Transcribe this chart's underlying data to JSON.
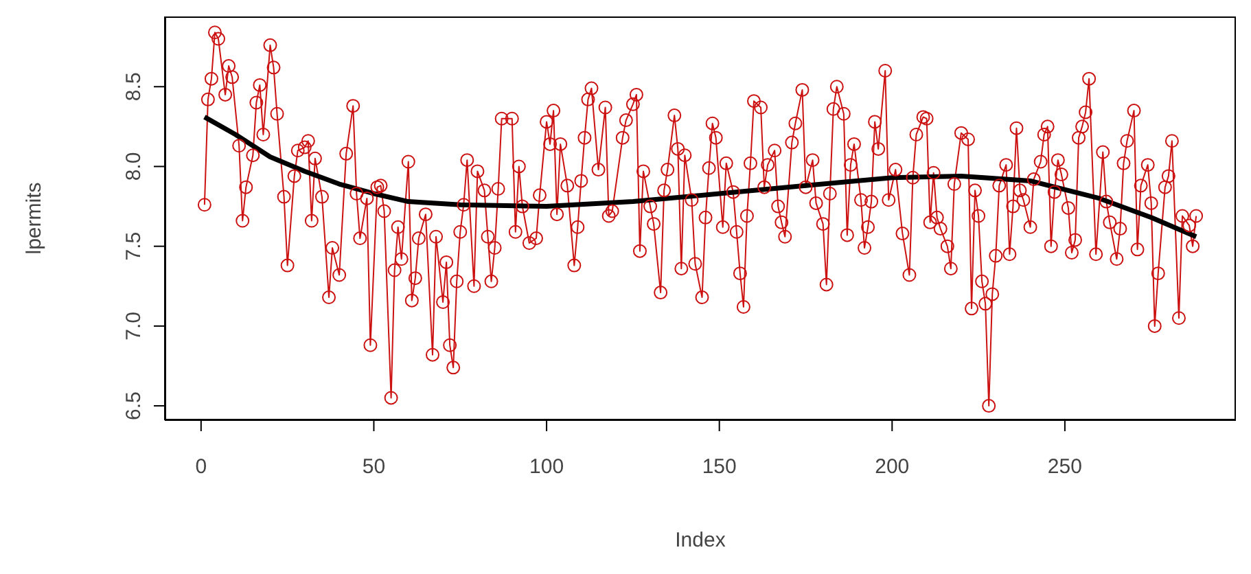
{
  "chart_data": {
    "type": "line",
    "xlabel": "Index",
    "ylabel": "lpermits",
    "xlim": [
      -10.5,
      299.5
    ],
    "xticks": [
      0,
      50,
      100,
      150,
      200,
      250
    ],
    "ylim": [
      6.41,
      8.94
    ],
    "yticks": [
      6.5,
      {
        "value": 7,
        "label": "7.0"
      },
      7.5,
      {
        "value": 8,
        "label": "8.0"
      },
      8.5
    ],
    "grid": false,
    "series": [
      {
        "color": "#cc1111",
        "marker": "circle",
        "line_style": "solid",
        "x": [
          1,
          2,
          3,
          4,
          5,
          7,
          8,
          9,
          11,
          12,
          13,
          15,
          16,
          17,
          18,
          20,
          21,
          22,
          24,
          25,
          27,
          28,
          30,
          31,
          32,
          33,
          35,
          37,
          38,
          40,
          42,
          44,
          45,
          46,
          48,
          49,
          51,
          52,
          53,
          55,
          56,
          57,
          58,
          60,
          61,
          62,
          63,
          65,
          67,
          68,
          70,
          71,
          72,
          73,
          74,
          75,
          76,
          77,
          79,
          80,
          82,
          83,
          84,
          85,
          86,
          87,
          90,
          91,
          92,
          93,
          95,
          97,
          98,
          100,
          101,
          102,
          103,
          104,
          106,
          108,
          109,
          110,
          111,
          112,
          113,
          115,
          117,
          118,
          119,
          122,
          123,
          125,
          126,
          127,
          128,
          130,
          131,
          133,
          134,
          135,
          137,
          138,
          139,
          140,
          142,
          143,
          145,
          146,
          147,
          148,
          149,
          151,
          152,
          154,
          155,
          156,
          157,
          158,
          159,
          160,
          162,
          163,
          164,
          166,
          167,
          168,
          169,
          171,
          172,
          174,
          175,
          177,
          178,
          180,
          181,
          182,
          183,
          184,
          186,
          187,
          188,
          189,
          191,
          192,
          193,
          194,
          195,
          196,
          198,
          199,
          201,
          203,
          205,
          206,
          207,
          209,
          210,
          211,
          212,
          213,
          214,
          216,
          217,
          218,
          220,
          222,
          223,
          224,
          225,
          226,
          227,
          228,
          229,
          230,
          231,
          233,
          234,
          235,
          236,
          237,
          238,
          240,
          241,
          243,
          244,
          245,
          246,
          247,
          248,
          249,
          251,
          252,
          253,
          254,
          255,
          256,
          257,
          259,
          261,
          262,
          263,
          265,
          266,
          267,
          268,
          270,
          271,
          272,
          274,
          275,
          276,
          277,
          279,
          280,
          281,
          283,
          284,
          286,
          287,
          288
        ],
        "values": [
          7.76,
          8.42,
          8.55,
          8.84,
          8.8,
          8.45,
          8.63,
          8.56,
          8.13,
          7.66,
          7.87,
          8.07,
          8.4,
          8.51,
          8.2,
          8.76,
          8.62,
          8.33,
          7.81,
          7.38,
          7.94,
          8.1,
          8.12,
          8.16,
          7.66,
          8.05,
          7.81,
          7.18,
          7.49,
          7.32,
          8.08,
          8.38,
          7.83,
          7.55,
          7.8,
          6.88,
          7.87,
          7.88,
          7.72,
          6.55,
          7.35,
          7.62,
          7.42,
          8.03,
          7.16,
          7.3,
          7.55,
          7.7,
          6.82,
          7.56,
          7.15,
          7.4,
          6.88,
          6.74,
          7.28,
          7.59,
          7.76,
          8.04,
          7.25,
          7.97,
          7.85,
          7.56,
          7.28,
          7.49,
          7.86,
          8.3,
          8.3,
          7.59,
          8.0,
          7.75,
          7.52,
          7.55,
          7.82,
          8.28,
          8.14,
          8.35,
          7.7,
          8.14,
          7.88,
          7.38,
          7.62,
          7.91,
          8.18,
          8.42,
          8.49,
          7.98,
          8.37,
          7.69,
          7.72,
          8.18,
          8.29,
          8.39,
          8.45,
          7.47,
          7.97,
          7.75,
          7.64,
          7.21,
          7.85,
          7.98,
          8.32,
          8.11,
          7.36,
          8.07,
          7.79,
          7.39,
          7.18,
          7.68,
          7.99,
          8.27,
          8.18,
          7.62,
          8.02,
          7.84,
          7.59,
          7.33,
          7.12,
          7.69,
          8.02,
          8.41,
          8.37,
          7.87,
          8.01,
          8.1,
          7.75,
          7.65,
          7.56,
          8.15,
          8.27,
          8.48,
          7.87,
          8.04,
          7.77,
          7.64,
          7.26,
          7.83,
          8.36,
          8.5,
          8.33,
          7.57,
          8.01,
          8.14,
          7.79,
          7.49,
          7.62,
          7.78,
          8.28,
          8.11,
          8.6,
          7.79,
          7.98,
          7.58,
          7.32,
          7.93,
          8.2,
          8.31,
          8.3,
          7.65,
          7.96,
          7.68,
          7.61,
          7.5,
          7.36,
          7.89,
          8.21,
          8.17,
          7.11,
          7.85,
          7.69,
          7.28,
          7.14,
          6.5,
          7.2,
          7.44,
          7.88,
          8.01,
          7.45,
          7.75,
          8.24,
          7.85,
          7.79,
          7.62,
          7.92,
          8.03,
          8.2,
          8.25,
          7.5,
          7.84,
          8.04,
          7.95,
          7.74,
          7.46,
          7.54,
          8.18,
          8.25,
          8.34,
          8.55,
          7.45,
          8.09,
          7.78,
          7.65,
          7.42,
          7.61,
          8.02,
          8.16,
          8.35,
          7.48,
          7.88,
          8.01,
          7.77,
          7.0,
          7.33,
          7.87,
          7.94,
          8.16,
          7.05,
          7.69,
          7.63,
          7.5,
          7.69
        ]
      },
      {
        "color": "#000000",
        "marker": "none",
        "line_style": "solid",
        "x": [
          1,
          10,
          20,
          30,
          40,
          50,
          60,
          75,
          100,
          125,
          150,
          175,
          200,
          220,
          240,
          260,
          275,
          288
        ],
        "values": [
          8.31,
          8.2,
          8.06,
          7.97,
          7.89,
          7.83,
          7.78,
          7.76,
          7.75,
          7.78,
          7.83,
          7.88,
          7.93,
          7.94,
          7.91,
          7.8,
          7.68,
          7.56
        ]
      }
    ]
  }
}
